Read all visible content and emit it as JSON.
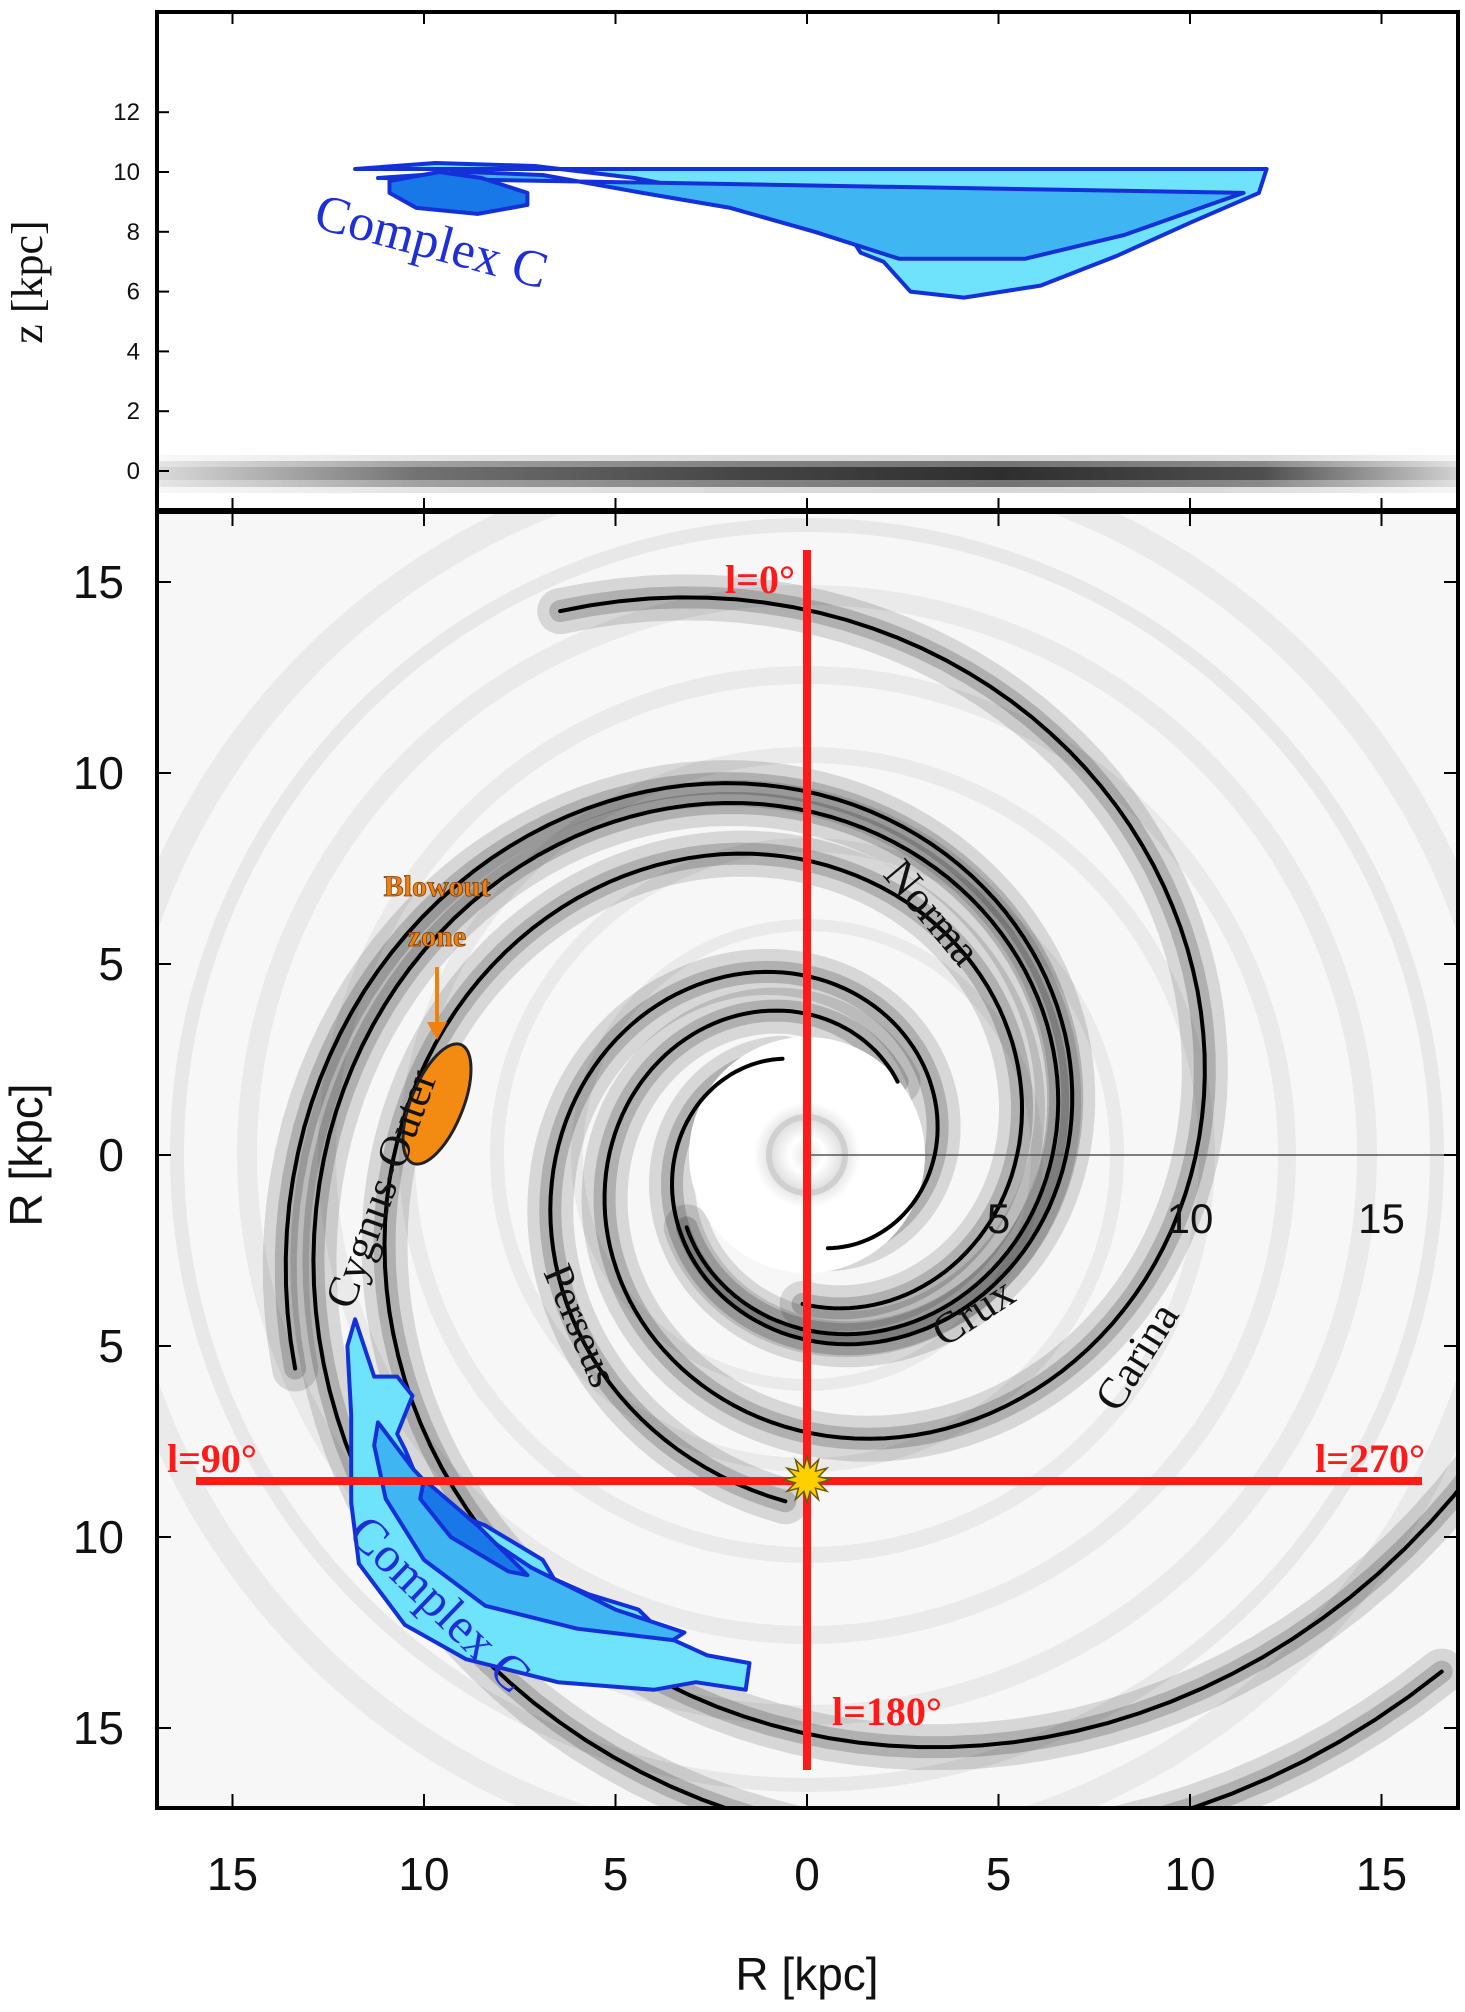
{
  "chart_data": [
    {
      "type": "contour",
      "panel": "top",
      "ylabel": "z [kpc]",
      "ylim": [
        -1,
        12.5
      ],
      "xlim": [
        17,
        -17
      ],
      "y_ticks": [
        "0",
        "2",
        "4",
        "6",
        "8",
        "10",
        "12"
      ],
      "disk_z": 0,
      "cloud": {
        "name": "Complex C",
        "label": "Complex C",
        "levels": [
          {
            "level": "outer",
            "fill": "#6fe3fb",
            "points": [
              [
                11.8,
                10.1
              ],
              [
                9.7,
                10.3
              ],
              [
                7.1,
                10.2
              ],
              [
                4.5,
                9.8
              ],
              [
                2.1,
                9.2
              ],
              [
                0.3,
                8.6
              ],
              [
                -0.8,
                8.2
              ],
              [
                -1.0,
                8.1
              ],
              [
                -1.4,
                7.3
              ],
              [
                -2.0,
                7.0
              ],
              [
                -2.7,
                6.0
              ],
              [
                -4.1,
                5.8
              ],
              [
                -6.1,
                6.2
              ],
              [
                -8.1,
                7.2
              ],
              [
                -10.0,
                8.3
              ],
              [
                -11.8,
                9.3
              ],
              [
                -12.0,
                10.1
              ]
            ]
          },
          {
            "level": "middle",
            "fill": "#3fb5f2",
            "points": [
              [
                11.2,
                9.8
              ],
              [
                8.9,
                10.0
              ],
              [
                6.9,
                9.9
              ],
              [
                4.3,
                9.3
              ],
              [
                2.0,
                8.8
              ],
              [
                -0.2,
                8.0
              ],
              [
                -2.4,
                7.1
              ],
              [
                -5.7,
                7.1
              ],
              [
                -8.3,
                7.9
              ],
              [
                -10.5,
                8.9
              ],
              [
                -11.4,
                9.3
              ]
            ]
          },
          {
            "level": "inner",
            "fill": "#1878e8",
            "points": [
              [
                10.9,
                9.7
              ],
              [
                9.6,
                10.0
              ],
              [
                8.5,
                9.8
              ],
              [
                7.3,
                9.3
              ],
              [
                7.3,
                8.9
              ],
              [
                8.6,
                8.6
              ],
              [
                10.2,
                8.8
              ],
              [
                10.9,
                9.3
              ]
            ]
          }
        ]
      }
    },
    {
      "type": "map",
      "panel": "bottom",
      "xlabel": "R [kpc]",
      "ylabel": "R [kpc]",
      "xlim": [
        17,
        -17
      ],
      "ylim": [
        17,
        -17
      ],
      "x_ticks": [
        "15",
        "10",
        "5",
        "0",
        "5",
        "10",
        "15"
      ],
      "y_ticks": [
        "15",
        "10",
        "5",
        "0",
        "5",
        "10",
        "15"
      ],
      "inner_x_ticks": [
        "5",
        "10",
        "15"
      ],
      "sun": [
        0,
        8.5
      ],
      "longitudes": [
        {
          "label": "l=0°",
          "direction": "up"
        },
        {
          "label": "l=90°",
          "direction": "left"
        },
        {
          "label": "l=180°",
          "direction": "down"
        },
        {
          "label": "l=270°",
          "direction": "right"
        }
      ],
      "arms": [
        "Norma",
        "Crux",
        "Carina",
        "Perseus",
        "Cygnus-Outer"
      ],
      "blowout": {
        "label_line1": "Blowout",
        "label_line2": "zone",
        "center": [
          9.9,
          1.4
        ],
        "fill": "#f38b12"
      },
      "cloud": {
        "name": "Complex C",
        "label": "Complex C",
        "levels": [
          {
            "level": "outer",
            "fill": "#6fe3fb",
            "points": [
              [
                11.8,
                4.3
              ],
              [
                11.3,
                5.8
              ],
              [
                10.7,
                5.8
              ],
              [
                10.3,
                6.3
              ],
              [
                10.7,
                7.3
              ],
              [
                10.5,
                7.7
              ],
              [
                9.9,
                9.1
              ],
              [
                8.4,
                9.7
              ],
              [
                6.9,
                10.6
              ],
              [
                6.6,
                11.1
              ],
              [
                5.7,
                11.5
              ],
              [
                4.4,
                11.9
              ],
              [
                3.7,
                12.6
              ],
              [
                2.6,
                13.1
              ],
              [
                1.5,
                13.3
              ],
              [
                1.6,
                14.0
              ],
              [
                2.9,
                13.8
              ],
              [
                4.0,
                14.0
              ],
              [
                6.5,
                13.8
              ],
              [
                8.9,
                13.2
              ],
              [
                10.5,
                12.3
              ],
              [
                11.7,
                10.7
              ],
              [
                11.9,
                9.1
              ],
              [
                11.9,
                6.8
              ],
              [
                12.0,
                5.0
              ]
            ]
          },
          {
            "level": "middle",
            "fill": "#3fb5f2",
            "points": [
              [
                11.2,
                7.0
              ],
              [
                10.3,
                8.2
              ],
              [
                9.0,
                9.6
              ],
              [
                7.2,
                10.8
              ],
              [
                5.0,
                11.9
              ],
              [
                3.2,
                12.5
              ],
              [
                3.5,
                12.7
              ],
              [
                6.0,
                12.4
              ],
              [
                8.4,
                11.8
              ],
              [
                10.0,
                10.6
              ],
              [
                11.0,
                9.0
              ],
              [
                11.3,
                7.6
              ]
            ]
          },
          {
            "level": "inner",
            "fill": "#1878e8",
            "points": [
              [
                10.0,
                8.5
              ],
              [
                9.3,
                9.1
              ],
              [
                8.6,
                9.7
              ],
              [
                7.3,
                11.0
              ],
              [
                7.8,
                10.9
              ],
              [
                9.3,
                10.0
              ],
              [
                10.1,
                9.0
              ]
            ]
          }
        ]
      }
    }
  ],
  "colors": {
    "axis_line": "#000000",
    "longitude_line": "#ff1a1a",
    "cloud_label": "#1f2fd8",
    "blowout_label": "#f08010",
    "sun_fill": "#ffd000",
    "arm_line": "#000000"
  }
}
